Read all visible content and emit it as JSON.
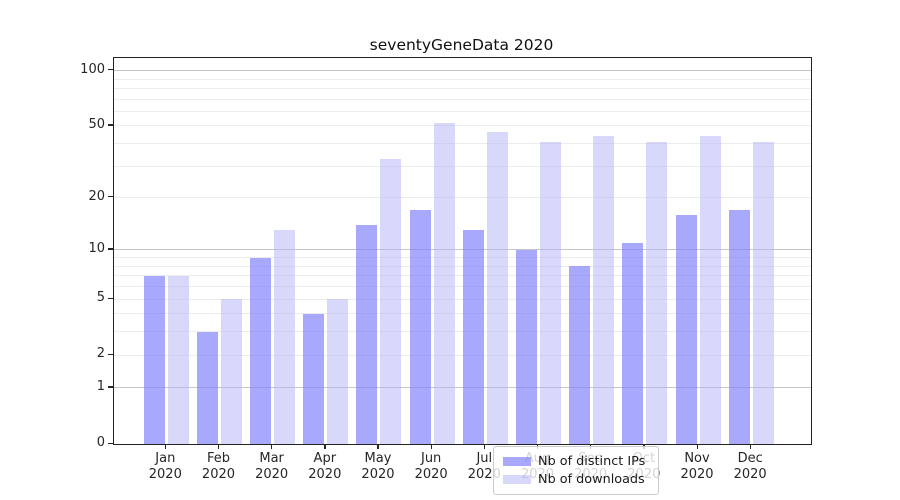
{
  "title": "seventyGeneData 2020",
  "chart_data": {
    "type": "bar",
    "title": "seventyGeneData 2020",
    "months": [
      "Jan",
      "Feb",
      "Mar",
      "Apr",
      "May",
      "Jun",
      "Jul",
      "Aug",
      "Sep",
      "Oct",
      "Nov",
      "Dec"
    ],
    "year_label": "2020",
    "categories": [
      "Jan 2020",
      "Feb 2020",
      "Mar 2020",
      "Apr 2020",
      "May 2020",
      "Jun 2020",
      "Jul 2020",
      "Aug 2020",
      "Sep 2020",
      "Oct 2020",
      "Nov 2020",
      "Dec 2020"
    ],
    "series": [
      {
        "name": "Nb of distinct IPs",
        "color": "rgba(131,131,251,0.7)",
        "values": [
          7,
          3,
          9,
          4,
          14,
          17,
          13,
          10,
          8,
          11,
          16,
          17
        ]
      },
      {
        "name": "Nb of downloads",
        "color": "rgba(177,177,247,0.5)",
        "values": [
          7,
          5,
          13,
          5,
          33,
          52,
          46,
          41,
          44,
          41,
          44,
          41
        ]
      }
    ],
    "xlabel": "",
    "ylabel": "",
    "y_axis": {
      "scale": "log1p",
      "tick_values": [
        0,
        1,
        2,
        5,
        10,
        20,
        50,
        100
      ],
      "major_gridlines": [
        1,
        10,
        100
      ],
      "minor_gridlines": [
        2,
        3,
        4,
        5,
        6,
        7,
        8,
        9,
        20,
        30,
        40,
        50,
        60,
        70,
        80,
        90
      ],
      "max_value": 117
    },
    "grid": true,
    "legend": {
      "position": "lower center inside",
      "items": [
        "Nb of distinct IPs",
        "Nb of downloads"
      ]
    },
    "colors": {
      "distinct_ips_bar": "#a8a8fb",
      "downloads_bar": "#d8d8fb",
      "major_grid": "#c6c6c6",
      "minor_grid": "#ececec",
      "spine": "#222222",
      "text": "#1a1a1a"
    }
  }
}
